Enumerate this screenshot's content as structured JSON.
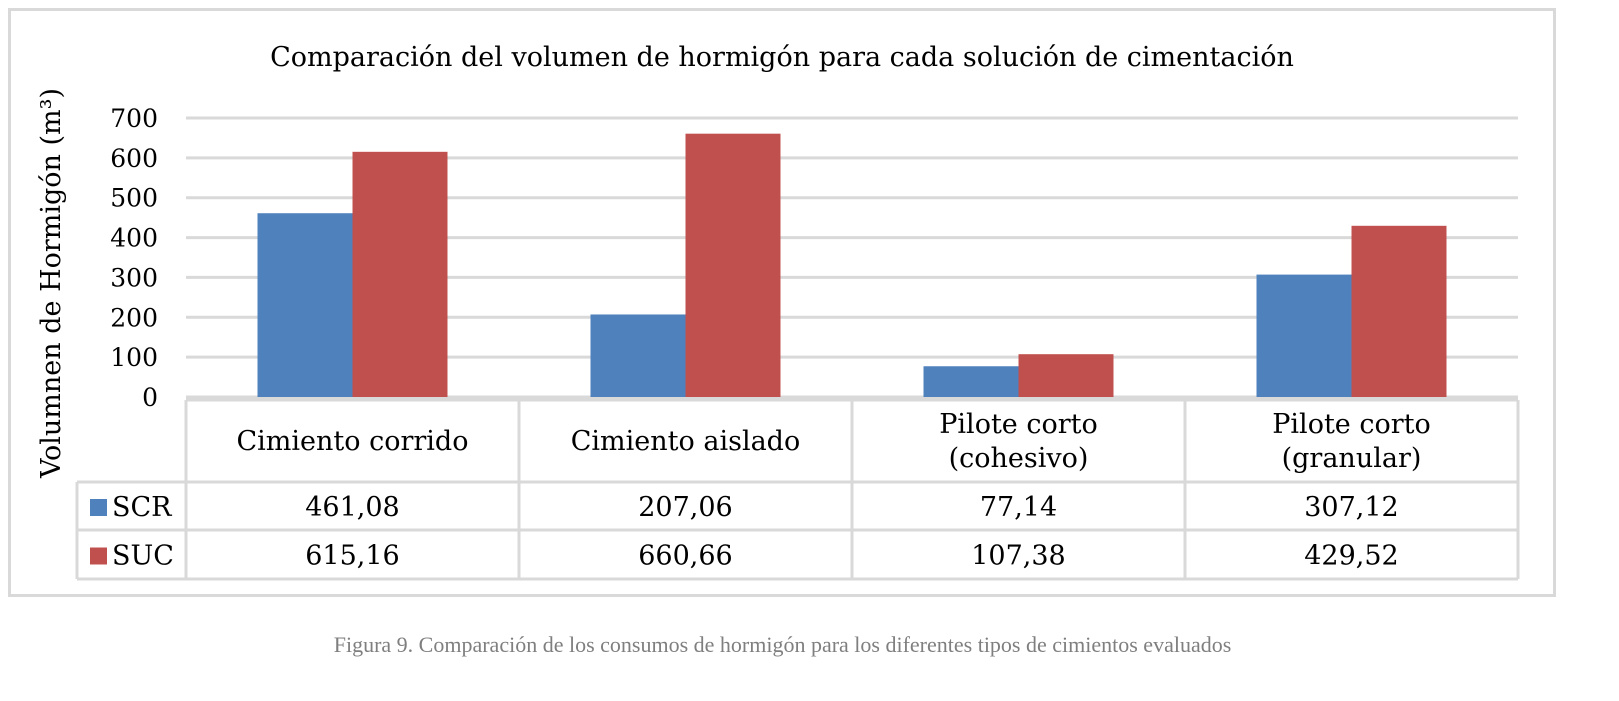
{
  "chart_data": {
    "type": "bar",
    "title": "Comparación del volumen de hormigón para cada solución de cimentación",
    "ylabel": "Volumnen de Hormigón (m³)",
    "xlabel": "",
    "ylim": [
      0,
      700
    ],
    "yticks": [
      "0",
      "100",
      "200",
      "300",
      "400",
      "500",
      "600",
      "700"
    ],
    "categories": [
      [
        "Cimiento corrido"
      ],
      [
        "Cimiento aislado"
      ],
      [
        "Pilote corto",
        "(cohesivo)"
      ],
      [
        "Pilote corto",
        "(granular)"
      ]
    ],
    "series": [
      {
        "name": "SCR",
        "color": "#4f81bd",
        "values": [
          461.08,
          207.06,
          77.14,
          307.12
        ],
        "labels": [
          "461,08",
          "207,06",
          "77,14",
          "307,12"
        ]
      },
      {
        "name": "SUC",
        "color": "#c0504d",
        "values": [
          615.16,
          660.66,
          107.38,
          429.52
        ],
        "labels": [
          "615,16",
          "660,66",
          "107,38",
          "429,52"
        ]
      }
    ],
    "grid": true,
    "legend": "data-table-left"
  },
  "caption": "Figura 9. Comparación de los consumos de hormigón para los diferentes tipos de cimientos evaluados"
}
